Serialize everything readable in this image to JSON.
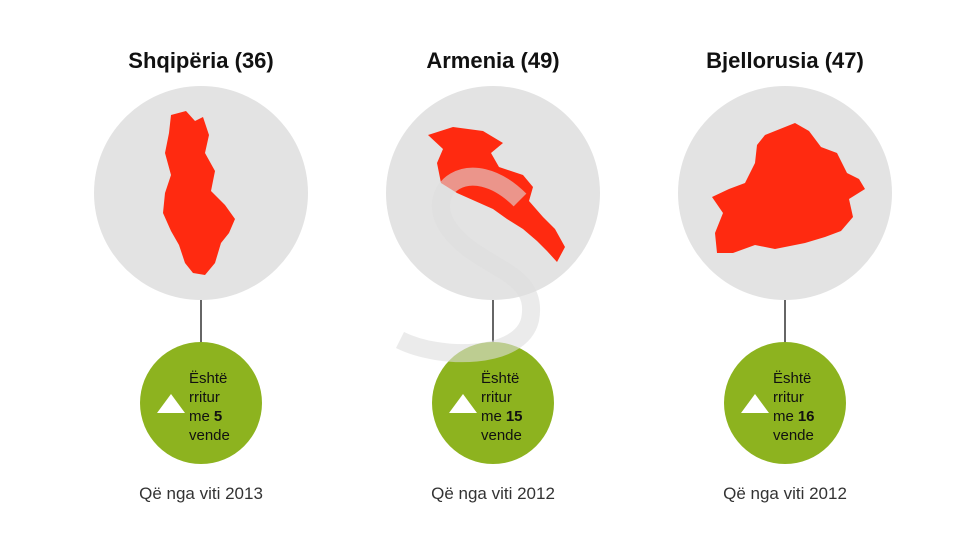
{
  "columns": [
    {
      "title": "Shqipëria (36)",
      "badge": {
        "line1": "Është",
        "line2": "rritur",
        "line3": "me",
        "number": "5",
        "line4": "vende"
      },
      "footer": "Që nga viti 2013"
    },
    {
      "title": "Armenia (49)",
      "badge": {
        "line1": "Është",
        "line2": "rritur",
        "line3": "me",
        "number": "15",
        "line4": "vende"
      },
      "footer": "Që nga viti 2012"
    },
    {
      "title": "Bjellorusia (47)",
      "badge": {
        "line1": "Është",
        "line2": "rritur",
        "line3": "me",
        "number": "16",
        "line4": "vende"
      },
      "footer": "Që nga viti 2012"
    }
  ]
}
